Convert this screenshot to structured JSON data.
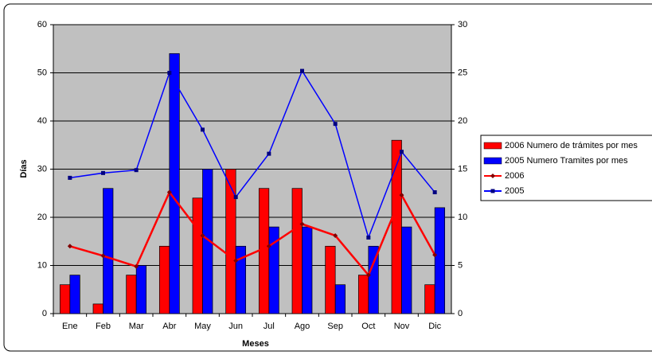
{
  "chart_data": {
    "type": "bar-line",
    "categories": [
      "Ene",
      "Feb",
      "Mar",
      "Abr",
      "May",
      "Jun",
      "Jul",
      "Ago",
      "Sep",
      "Oct",
      "Nov",
      "Dic"
    ],
    "x_label": "Meses",
    "y_label": "Días",
    "ylim": [
      0,
      60
    ],
    "yticks": [
      0,
      10,
      20,
      30,
      40,
      50,
      60
    ],
    "y2lim": [
      0,
      30
    ],
    "y2ticks": [
      0,
      5,
      10,
      15,
      20,
      25,
      30
    ],
    "series": [
      {
        "name": "2006 Numero de trámites por mes",
        "color": "#ff0000",
        "kind": "bar",
        "values": [
          6,
          2,
          8,
          14,
          24,
          30,
          26,
          26,
          14,
          8,
          36,
          6
        ]
      },
      {
        "name": "2005 Numero Tramites por mes",
        "color": "#0000ff",
        "kind": "bar",
        "values": [
          8,
          26,
          10,
          54,
          30,
          14,
          18,
          18,
          6,
          14,
          18,
          22
        ]
      },
      {
        "name": "2006",
        "color": "#ff0000",
        "kind": "line",
        "axis": "y2",
        "values": [
          7,
          6,
          4.9,
          12.6,
          8.1,
          5.5,
          7,
          9.3,
          8.1,
          4,
          12.3,
          6.1
        ]
      },
      {
        "name": "2005",
        "color": "#0000ff",
        "kind": "line",
        "axis": "y2",
        "values": [
          14.1,
          14.6,
          14.9,
          25,
          19.1,
          12.1,
          16.6,
          25.2,
          19.7,
          7.9,
          16.8,
          12.6
        ]
      }
    ]
  }
}
